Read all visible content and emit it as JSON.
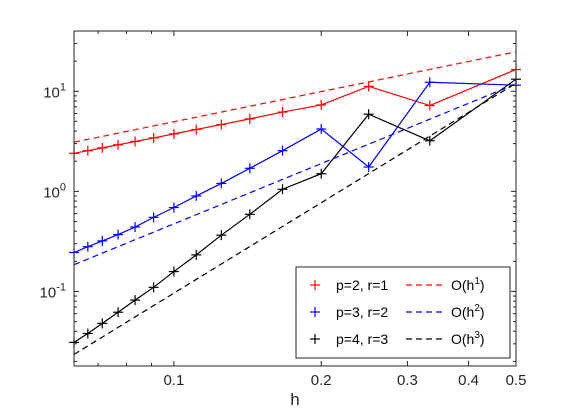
{
  "chart_data": {
    "type": "line",
    "xscale": "log",
    "yscale": "log",
    "xlabel": "h",
    "ylabel": "",
    "xlim": [
      0.0625,
      0.5
    ],
    "ylim": [
      0.018,
      40
    ],
    "grid": false,
    "legend_placement": "bottom-right",
    "x_ticks": [
      {
        "value": 0.1,
        "label": "0.1"
      },
      {
        "value": 0.2,
        "label": "0.2"
      },
      {
        "value": 0.3,
        "label": "0.3"
      },
      {
        "value": 0.4,
        "label": "0.4"
      },
      {
        "value": 0.5,
        "label": "0.5"
      }
    ],
    "y_ticks": [
      {
        "value": 0.1,
        "base": "10",
        "exp": "-1"
      },
      {
        "value": 1,
        "base": "10",
        "exp": "0"
      },
      {
        "value": 10,
        "base": "10",
        "exp": "1"
      }
    ],
    "series": [
      {
        "name": "p=2, r=1",
        "color": "#ff0000",
        "style": "solid-plus",
        "points": [
          [
            0.0625,
            2.4
          ],
          [
            0.0667,
            2.55
          ],
          [
            0.0714,
            2.72
          ],
          [
            0.0769,
            2.92
          ],
          [
            0.0833,
            3.15
          ],
          [
            0.0909,
            3.42
          ],
          [
            0.1,
            3.75
          ],
          [
            0.1111,
            4.15
          ],
          [
            0.125,
            4.65
          ],
          [
            0.1429,
            5.3
          ],
          [
            0.1667,
            6.2
          ],
          [
            0.2,
            7.3
          ],
          [
            0.25,
            11.2
          ],
          [
            0.3333,
            7.2
          ],
          [
            0.5,
            16.5
          ]
        ]
      },
      {
        "name": "p=3, r=2",
        "color": "#0000ff",
        "style": "solid-plus",
        "points": [
          [
            0.0625,
            0.245
          ],
          [
            0.0667,
            0.28
          ],
          [
            0.0714,
            0.32
          ],
          [
            0.0769,
            0.37
          ],
          [
            0.0833,
            0.44
          ],
          [
            0.0909,
            0.55
          ],
          [
            0.1,
            0.69
          ],
          [
            0.1111,
            0.9
          ],
          [
            0.125,
            1.2
          ],
          [
            0.1429,
            1.7
          ],
          [
            0.1667,
            2.55
          ],
          [
            0.2,
            4.2
          ],
          [
            0.25,
            1.75
          ],
          [
            0.3333,
            12.3
          ],
          [
            0.5,
            11.5
          ]
        ]
      },
      {
        "name": "p=4, r=3",
        "color": "#000000",
        "style": "solid-plus",
        "points": [
          [
            0.0625,
            0.031
          ],
          [
            0.0667,
            0.038
          ],
          [
            0.0714,
            0.048
          ],
          [
            0.0769,
            0.062
          ],
          [
            0.0833,
            0.082
          ],
          [
            0.0909,
            0.11
          ],
          [
            0.1,
            0.158
          ],
          [
            0.1111,
            0.232
          ],
          [
            0.125,
            0.365
          ],
          [
            0.1429,
            0.59
          ],
          [
            0.1667,
            1.05
          ],
          [
            0.2,
            1.5
          ],
          [
            0.25,
            5.9
          ],
          [
            0.3333,
            3.2
          ],
          [
            0.5,
            13.2
          ]
        ]
      },
      {
        "name": "O(h^1)",
        "label_base": "O(h",
        "label_exp": "1",
        "label_end": ")",
        "color": "#ff0000",
        "style": "dashed",
        "points": [
          [
            0.0625,
            3.1
          ],
          [
            0.5,
            24.8
          ]
        ]
      },
      {
        "name": "O(h^2)",
        "label_base": "O(h",
        "label_exp": "2",
        "label_end": ")",
        "color": "#0000ff",
        "style": "dashed",
        "points": [
          [
            0.0625,
            0.185
          ],
          [
            0.5,
            11.84
          ]
        ]
      },
      {
        "name": "O(h^3)",
        "label_base": "O(h",
        "label_exp": "3",
        "label_end": ")",
        "color": "#000000",
        "style": "dashed",
        "points": [
          [
            0.0625,
            0.0235
          ],
          [
            0.5,
            12.03
          ]
        ]
      }
    ],
    "legend": [
      {
        "series": 0,
        "label": "p=2, r=1"
      },
      {
        "series": 3,
        "base": "O(h",
        "exp": "1",
        "end": ")"
      },
      {
        "series": 1,
        "label": "p=3, r=2"
      },
      {
        "series": 4,
        "base": "O(h",
        "exp": "2",
        "end": ")"
      },
      {
        "series": 2,
        "label": "p=4, r=3"
      },
      {
        "series": 5,
        "base": "O(h",
        "exp": "3",
        "end": ")"
      }
    ]
  }
}
